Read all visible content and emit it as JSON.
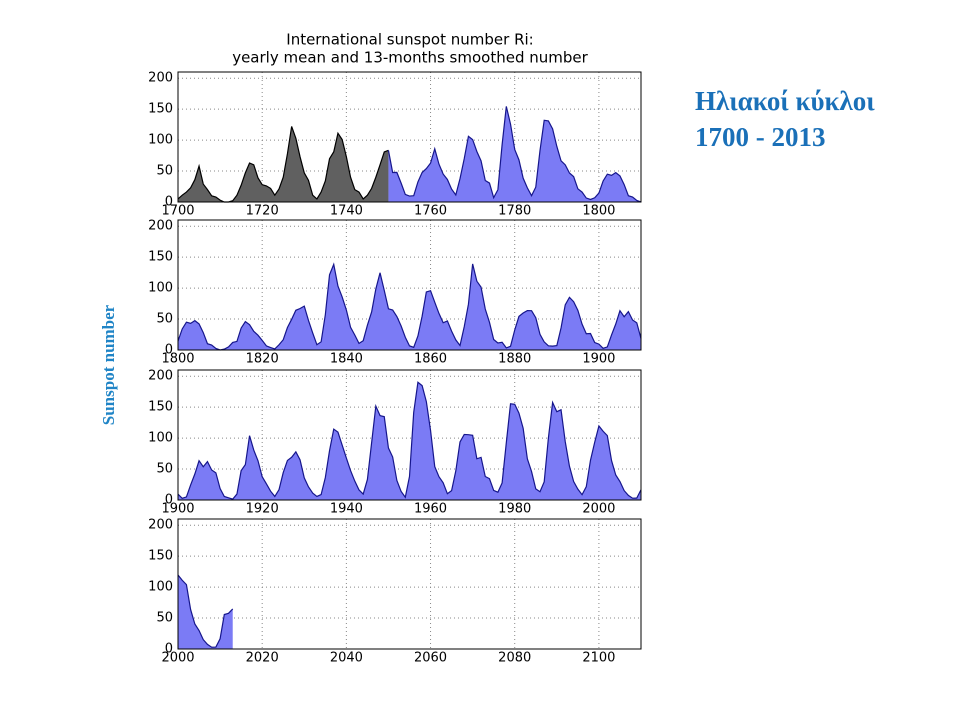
{
  "title": [
    "International sunspot number Ri:",
    "yearly mean and 13-months smoothed number"
  ],
  "y_label": "Sunspot number",
  "side_title": [
    "Ηλιακοί κύκλοι",
    "1700 - 2013"
  ],
  "chart_data": [
    {
      "type": "area",
      "xlim": [
        1700,
        1810
      ],
      "ylim": [
        0,
        210
      ],
      "xticks": [
        1700,
        1720,
        1740,
        1760,
        1780,
        1800
      ],
      "yticks": [
        0,
        50,
        100,
        150,
        200
      ],
      "grid": true,
      "series": [
        {
          "color": "#606060",
          "line_color": "#000000",
          "x": [
            1700,
            1701,
            1702,
            1703,
            1704,
            1705,
            1706,
            1707,
            1708,
            1709,
            1710,
            1711,
            1712,
            1713,
            1714,
            1715,
            1716,
            1717,
            1718,
            1719,
            1720,
            1721,
            1722,
            1723,
            1724,
            1725,
            1726,
            1727,
            1728,
            1729,
            1730,
            1731,
            1732,
            1733,
            1734,
            1735,
            1736,
            1737,
            1738,
            1739,
            1740,
            1741,
            1742,
            1743,
            1744,
            1745,
            1746,
            1747,
            1748,
            1749,
            1750
          ],
          "values": [
            5,
            11,
            16,
            23,
            36,
            58,
            29,
            20,
            10,
            8,
            3,
            0,
            0,
            2,
            11,
            27,
            47,
            63,
            60,
            39,
            28,
            26,
            22,
            11,
            21,
            40,
            78,
            122,
            103,
            73,
            47,
            35,
            11,
            5,
            16,
            34,
            70,
            81,
            111,
            101,
            73,
            40,
            20,
            16,
            5,
            11,
            22,
            40,
            60,
            80.9,
            83.4
          ]
        },
        {
          "color": "#7b7bf5",
          "line_color": "#16168c",
          "x": [
            1750,
            1751,
            1752,
            1753,
            1754,
            1755,
            1756,
            1757,
            1758,
            1759,
            1760,
            1761,
            1762,
            1763,
            1764,
            1765,
            1766,
            1767,
            1768,
            1769,
            1770,
            1771,
            1772,
            1773,
            1774,
            1775,
            1776,
            1777,
            1778,
            1779,
            1780,
            1781,
            1782,
            1783,
            1784,
            1785,
            1786,
            1787,
            1788,
            1789,
            1790,
            1791,
            1792,
            1793,
            1794,
            1795,
            1796,
            1797,
            1798,
            1799,
            1800,
            1801,
            1802,
            1803,
            1804,
            1805,
            1806,
            1807,
            1808,
            1809,
            1810
          ],
          "values": [
            83.4,
            47.7,
            47.8,
            30.7,
            12.2,
            9.6,
            10.2,
            32.4,
            47.6,
            54,
            62.9,
            85.9,
            61.2,
            45.1,
            36.4,
            20.9,
            11.4,
            37.8,
            69.8,
            106.1,
            100.8,
            81.6,
            66.5,
            34.8,
            30.6,
            7,
            19.8,
            92.5,
            154.4,
            125.9,
            84.8,
            68.1,
            38.5,
            22.8,
            10.2,
            24.1,
            82.9,
            132,
            130.9,
            118.1,
            89.9,
            66.6,
            60,
            46.9,
            41,
            21.3,
            16,
            6.4,
            4.1,
            6.8,
            14.5,
            34,
            45,
            43.1,
            47.5,
            42.2,
            28.1,
            10.1,
            8.1,
            2.5,
            0
          ]
        }
      ]
    },
    {
      "type": "area",
      "xlim": [
        1800,
        1910
      ],
      "ylim": [
        0,
        210
      ],
      "xticks": [
        1800,
        1820,
        1840,
        1860,
        1880,
        1900
      ],
      "yticks": [
        0,
        50,
        100,
        150,
        200
      ],
      "grid": true,
      "series": [
        {
          "color": "#7b7bf5",
          "line_color": "#16168c",
          "x": [
            1800,
            1801,
            1802,
            1803,
            1804,
            1805,
            1806,
            1807,
            1808,
            1809,
            1810,
            1811,
            1812,
            1813,
            1814,
            1815,
            1816,
            1817,
            1818,
            1819,
            1820,
            1821,
            1822,
            1823,
            1824,
            1825,
            1826,
            1827,
            1828,
            1829,
            1830,
            1831,
            1832,
            1833,
            1834,
            1835,
            1836,
            1837,
            1838,
            1839,
            1840,
            1841,
            1842,
            1843,
            1844,
            1845,
            1846,
            1847,
            1848,
            1849,
            1850,
            1851,
            1852,
            1853,
            1854,
            1855,
            1856,
            1857,
            1858,
            1859,
            1860,
            1861,
            1862,
            1863,
            1864,
            1865,
            1866,
            1867,
            1868,
            1869,
            1870,
            1871,
            1872,
            1873,
            1874,
            1875,
            1876,
            1877,
            1878,
            1879,
            1880,
            1881,
            1882,
            1883,
            1884,
            1885,
            1886,
            1887,
            1888,
            1889,
            1890,
            1891,
            1892,
            1893,
            1894,
            1895,
            1896,
            1897,
            1898,
            1899,
            1900,
            1901,
            1902,
            1903,
            1904,
            1905,
            1906,
            1907,
            1908,
            1909,
            1910
          ],
          "values": [
            14.5,
            34,
            45,
            43.1,
            47.5,
            42.2,
            28.1,
            10.1,
            8.1,
            2.5,
            0,
            1.4,
            5,
            12.2,
            13.9,
            35.4,
            45.8,
            41,
            30.1,
            23.9,
            15.6,
            6.6,
            4,
            1.8,
            8.5,
            16.6,
            36.3,
            49.6,
            64.2,
            67,
            70.9,
            47.8,
            27.5,
            8.5,
            13.2,
            56.9,
            121.5,
            138.3,
            103.2,
            85.7,
            64.6,
            36.7,
            24.2,
            10.7,
            15,
            40.1,
            61.5,
            98.5,
            124.7,
            96.3,
            66.6,
            64.5,
            54.1,
            39,
            20.6,
            6.7,
            4.3,
            22.7,
            54.8,
            93.8,
            95.8,
            77.2,
            59.1,
            44,
            47,
            30.5,
            16.3,
            7.3,
            37.6,
            74,
            139,
            111.2,
            101.6,
            66.2,
            44.7,
            17,
            11.3,
            12.4,
            3.4,
            6,
            32.3,
            54.3,
            59.7,
            63.7,
            63.5,
            52.2,
            25.4,
            13.1,
            6.8,
            6.3,
            7.1,
            35.6,
            73,
            85.1,
            78,
            64,
            41.8,
            26.2,
            26.7,
            12.1,
            9.5,
            2.7,
            5,
            24.4,
            42,
            63.5,
            53.8,
            62,
            48.5,
            43.9,
            18.6
          ]
        }
      ]
    },
    {
      "type": "area",
      "xlim": [
        1900,
        2010
      ],
      "ylim": [
        0,
        210
      ],
      "xticks": [
        1900,
        1920,
        1940,
        1960,
        1980,
        2000
      ],
      "yticks": [
        0,
        50,
        100,
        150,
        200
      ],
      "grid": true,
      "series": [
        {
          "color": "#7b7bf5",
          "line_color": "#16168c",
          "x": [
            1900,
            1901,
            1902,
            1903,
            1904,
            1905,
            1906,
            1907,
            1908,
            1909,
            1910,
            1911,
            1912,
            1913,
            1914,
            1915,
            1916,
            1917,
            1918,
            1919,
            1920,
            1921,
            1922,
            1923,
            1924,
            1925,
            1926,
            1927,
            1928,
            1929,
            1930,
            1931,
            1932,
            1933,
            1934,
            1935,
            1936,
            1937,
            1938,
            1939,
            1940,
            1941,
            1942,
            1943,
            1944,
            1945,
            1946,
            1947,
            1948,
            1949,
            1950,
            1951,
            1952,
            1953,
            1954,
            1955,
            1956,
            1957,
            1958,
            1959,
            1960,
            1961,
            1962,
            1963,
            1964,
            1965,
            1966,
            1967,
            1968,
            1969,
            1970,
            1971,
            1972,
            1973,
            1974,
            1975,
            1976,
            1977,
            1978,
            1979,
            1980,
            1981,
            1982,
            1983,
            1984,
            1985,
            1986,
            1987,
            1988,
            1989,
            1990,
            1991,
            1992,
            1993,
            1994,
            1995,
            1996,
            1997,
            1998,
            1999,
            2000,
            2001,
            2002,
            2003,
            2004,
            2005,
            2006,
            2007,
            2008,
            2009,
            2010
          ],
          "values": [
            9.5,
            2.7,
            5,
            24.4,
            42,
            63.5,
            53.8,
            62,
            48.5,
            43.9,
            18.6,
            5.7,
            3.6,
            1.4,
            9.6,
            47.4,
            57.1,
            103.9,
            80.6,
            63.6,
            37.6,
            26.1,
            14.2,
            5.8,
            16.7,
            44.3,
            63.9,
            69,
            77.8,
            64.9,
            35.7,
            21.2,
            11.1,
            5.7,
            8.7,
            36.1,
            79.7,
            114.4,
            109.6,
            88.8,
            67.8,
            47.5,
            30.6,
            16.3,
            9.6,
            33.2,
            92.6,
            151.6,
            136.3,
            134.7,
            83.9,
            69.4,
            31.5,
            13.9,
            4.4,
            38,
            141.7,
            190.2,
            184.8,
            159,
            112.3,
            53.9,
            37.6,
            27.9,
            10.2,
            15.1,
            47,
            93.8,
            105.9,
            105.5,
            104.5,
            66.6,
            68.9,
            38,
            34.5,
            15.5,
            12.6,
            27.5,
            92.5,
            155.4,
            154.6,
            140.4,
            115.9,
            66.6,
            45.9,
            17.9,
            13.4,
            29.4,
            100.2,
            157.6,
            142.6,
            145.7,
            94.3,
            54.6,
            29.9,
            17.5,
            8.6,
            21.5,
            64.3,
            93.3,
            119.6,
            111,
            104,
            63.7,
            40.4,
            29.8,
            15.2,
            7.5,
            2.9,
            3.1,
            16.5
          ]
        }
      ]
    },
    {
      "type": "area",
      "xlim": [
        2000,
        2110
      ],
      "ylim": [
        0,
        210
      ],
      "xticks": [
        2000,
        2020,
        2040,
        2060,
        2080,
        2100
      ],
      "yticks": [
        0,
        50,
        100,
        150,
        200
      ],
      "grid": true,
      "series": [
        {
          "color": "#7b7bf5",
          "line_color": "#16168c",
          "x": [
            2000,
            2001,
            2002,
            2003,
            2004,
            2005,
            2006,
            2007,
            2008,
            2009,
            2010,
            2011,
            2012,
            2013
          ],
          "values": [
            119.6,
            111,
            104,
            63.7,
            40.4,
            29.8,
            15.2,
            7.5,
            2.9,
            3.1,
            16.5,
            55.7,
            57.6,
            64.7
          ]
        }
      ]
    }
  ]
}
